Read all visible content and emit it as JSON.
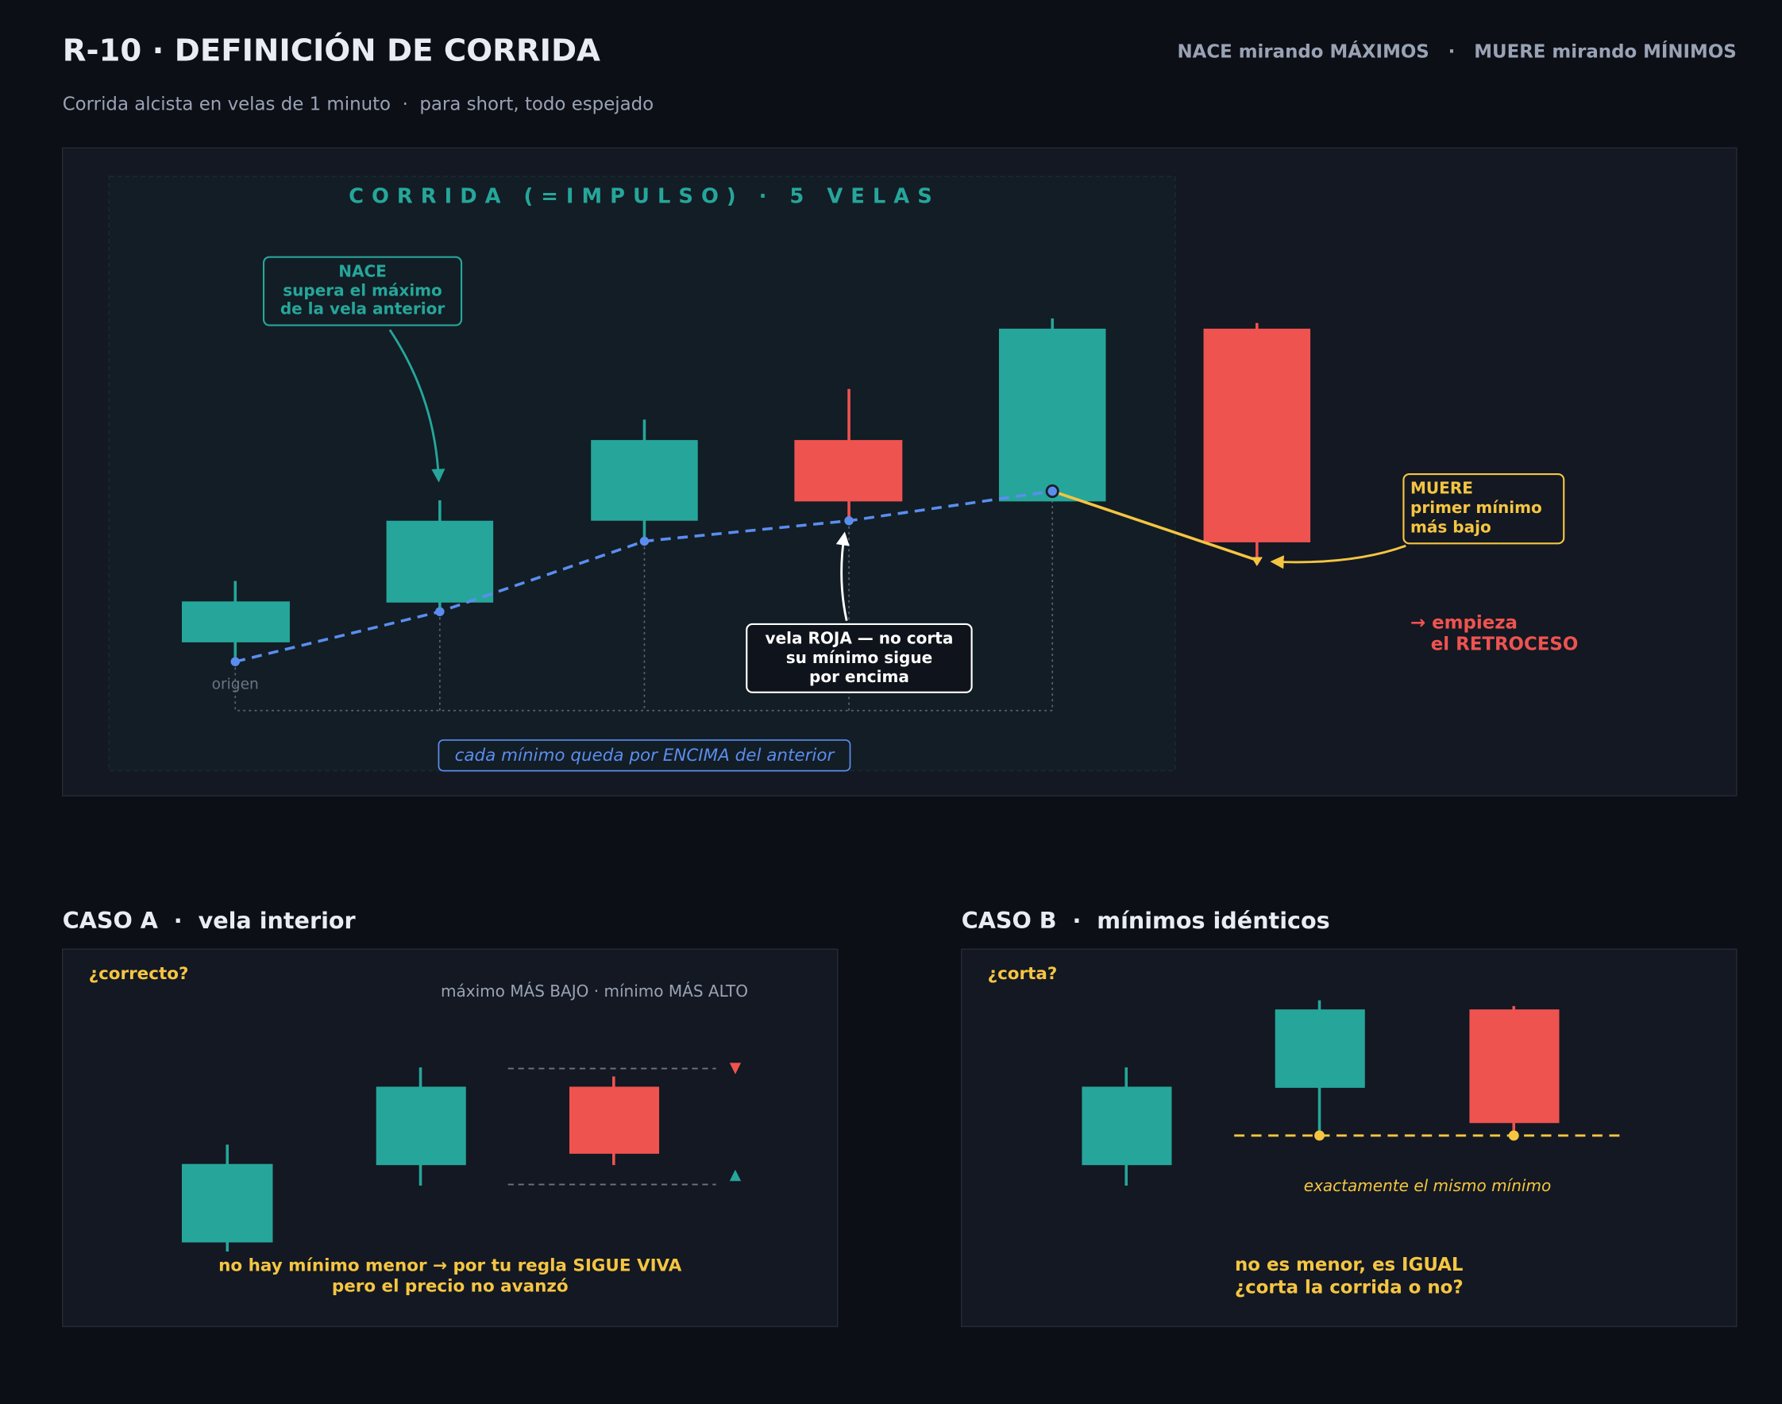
{
  "header": {
    "title": "R-10 · DEFINICIÓN DE CORRIDA",
    "tagline": "NACE mirando MÁXIMOS   ·   MUERE mirando MÍNIMOS",
    "subtitle": "Corrida alcista en velas de 1 minuto  ·  para short, todo espejado"
  },
  "main": {
    "zone_label": "CORRIDA (=IMPULSO) · 5 VELAS",
    "nace": [
      "NACE",
      "supera el máximo",
      "de la vela anterior"
    ],
    "origin": "origen",
    "roja": [
      "vela ROJA — no corta",
      "su mínimo sigue",
      "por encima"
    ],
    "muere": [
      "MUERE",
      "primer mínimo",
      "más bajo"
    ],
    "retroceso": [
      "→ empieza",
      "el RETROCESO"
    ],
    "footer": "cada mínimo queda por ENCIMA del anterior"
  },
  "case_a": {
    "title": "CASO A  ·  vela interior",
    "question": "¿correcto?",
    "note": "máximo MÁS BAJO  ·  mínimo MÁS ALTO",
    "conclusion": [
      "no hay mínimo menor → por tu regla SIGUE VIVA",
      "pero el precio no avanzó"
    ]
  },
  "case_b": {
    "title": "CASO B  ·  mínimos idénticos",
    "question": "¿corta?",
    "note": "exactamente el mismo mínimo",
    "conclusion": [
      "no es menor, es IGUAL",
      "¿corta la corrida o no?"
    ]
  }
}
